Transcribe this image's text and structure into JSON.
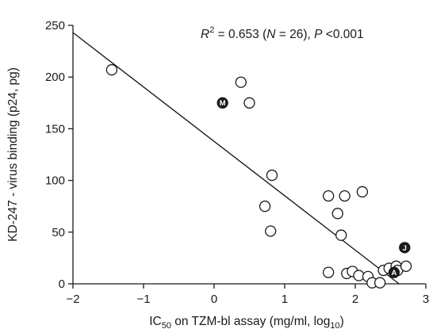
{
  "chart_data": {
    "type": "scatter",
    "xlabel_main": "IC",
    "xlabel_sub": "50",
    "xlabel_rest": " on TZM-bl assay (mg/ml, log",
    "xlabel_sub2": "10",
    "xlabel_end": ")",
    "ylabel": "KD-247 - virus binding (p24, pg)",
    "xlim": [
      -2,
      3
    ],
    "ylim": [
      0,
      250
    ],
    "x_ticks": [
      -2,
      -1,
      0,
      1,
      2,
      3
    ],
    "x_tick_labels": [
      "−2",
      "−1",
      "0",
      "1",
      "2",
      "3"
    ],
    "y_ticks": [
      0,
      50,
      100,
      150,
      200,
      250
    ],
    "y_tick_labels": [
      "0",
      "50",
      "100",
      "150",
      "200",
      "250"
    ],
    "annotation": {
      "r": "R",
      "sup": "2",
      "mid1": " = 0.653 (",
      "n": "N",
      "mid2": " = 26), ",
      "p": "P",
      "end": " <0.001"
    },
    "fit_line": {
      "x": [
        -2.0,
        2.62
      ],
      "y": [
        243,
        0
      ]
    },
    "points": [
      {
        "x": -1.45,
        "y": 207
      },
      {
        "x": 0.38,
        "y": 195
      },
      {
        "x": 0.5,
        "y": 175
      },
      {
        "x": 0.12,
        "y": 175,
        "label": "M"
      },
      {
        "x": 0.82,
        "y": 105
      },
      {
        "x": 0.72,
        "y": 75
      },
      {
        "x": 0.8,
        "y": 51
      },
      {
        "x": 1.62,
        "y": 85
      },
      {
        "x": 1.85,
        "y": 85
      },
      {
        "x": 2.1,
        "y": 89
      },
      {
        "x": 1.75,
        "y": 68
      },
      {
        "x": 1.8,
        "y": 47
      },
      {
        "x": 2.7,
        "y": 35,
        "label": "J"
      },
      {
        "x": 1.62,
        "y": 11
      },
      {
        "x": 1.88,
        "y": 10
      },
      {
        "x": 1.96,
        "y": 12
      },
      {
        "x": 2.05,
        "y": 8
      },
      {
        "x": 2.18,
        "y": 7
      },
      {
        "x": 2.24,
        "y": 1
      },
      {
        "x": 2.35,
        "y": 1
      },
      {
        "x": 2.4,
        "y": 13
      },
      {
        "x": 2.48,
        "y": 15
      },
      {
        "x": 2.58,
        "y": 17
      },
      {
        "x": 2.6,
        "y": 13
      },
      {
        "x": 2.72,
        "y": 17
      },
      {
        "x": 2.55,
        "y": 11,
        "label": "A"
      }
    ]
  }
}
